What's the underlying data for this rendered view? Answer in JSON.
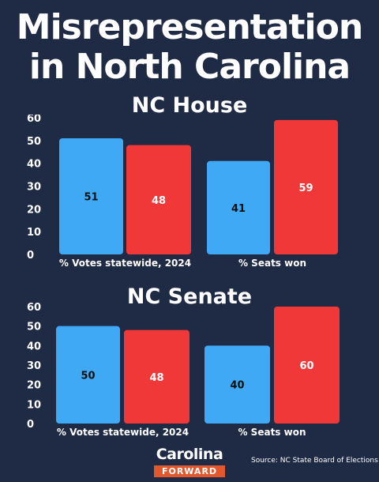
{
  "title": "Misrepresentation in North Carolina",
  "chart_data": [
    {
      "type": "bar",
      "title": "NC House",
      "categories": [
        "% Votes statewide, 2024",
        "% Seats won"
      ],
      "series": [
        {
          "values": [
            51,
            41
          ],
          "color": "#3fa9f5"
        },
        {
          "values": [
            48,
            59
          ],
          "color": "#f03838"
        }
      ],
      "ylim": [
        0,
        60
      ],
      "yticks": [
        0,
        10,
        20,
        30,
        40,
        50,
        60
      ]
    },
    {
      "type": "bar",
      "title": "NC Senate",
      "categories": [
        "% Votes statewide, 2024",
        "% Seats won"
      ],
      "series": [
        {
          "values": [
            50,
            40
          ],
          "color": "#3fa9f5"
        },
        {
          "values": [
            48,
            60
          ],
          "color": "#f03838"
        }
      ],
      "ylim": [
        0,
        60
      ],
      "yticks": [
        0,
        10,
        20,
        30,
        40,
        50,
        60
      ]
    }
  ],
  "footer": {
    "logo_top": "Carolina",
    "logo_bottom": "FORWARD",
    "source": "Source: NC State Board of Elections"
  }
}
